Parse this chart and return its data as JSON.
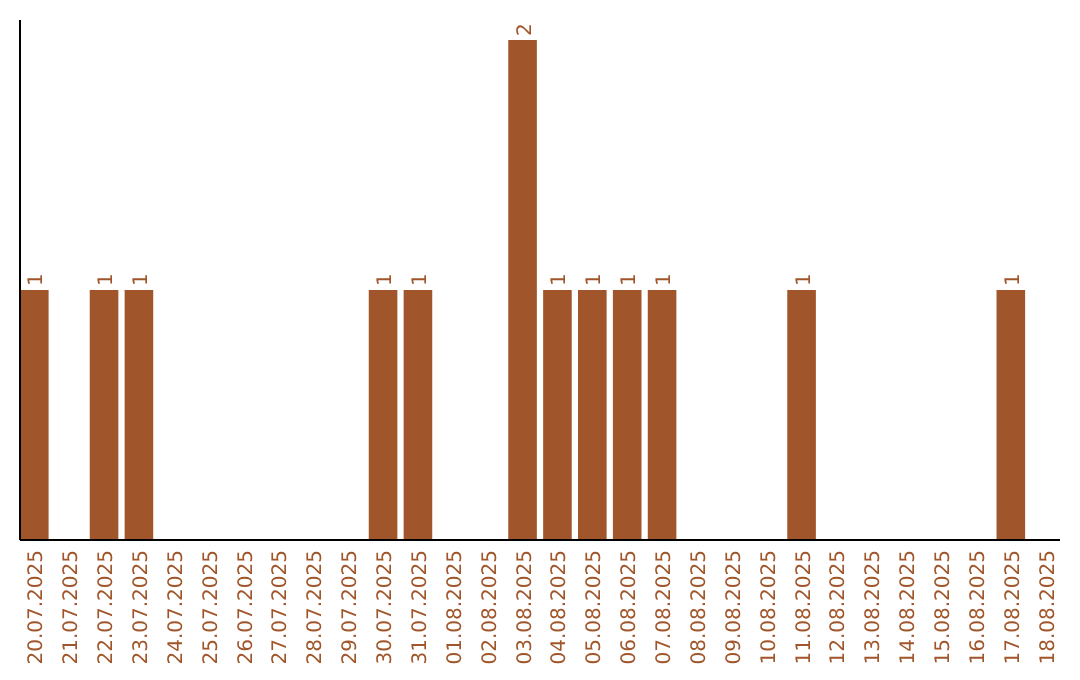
{
  "chart_data": {
    "type": "bar",
    "categories": [
      "20.07.2025",
      "21.07.2025",
      "22.07.2025",
      "23.07.2025",
      "24.07.2025",
      "25.07.2025",
      "26.07.2025",
      "27.07.2025",
      "28.07.2025",
      "29.07.2025",
      "30.07.2025",
      "31.07.2025",
      "01.08.2025",
      "02.08.2025",
      "03.08.2025",
      "04.08.2025",
      "05.08.2025",
      "06.08.2025",
      "07.08.2025",
      "08.08.2025",
      "09.08.2025",
      "10.08.2025",
      "11.08.2025",
      "12.08.2025",
      "13.08.2025",
      "14.08.2025",
      "15.08.2025",
      "16.08.2025",
      "17.08.2025",
      "18.08.2025"
    ],
    "values": [
      1,
      0,
      1,
      1,
      0,
      0,
      0,
      0,
      0,
      0,
      1,
      1,
      0,
      0,
      2,
      1,
      1,
      1,
      1,
      0,
      0,
      0,
      1,
      0,
      0,
      0,
      0,
      0,
      1,
      0
    ],
    "value_labels": [
      "1",
      null,
      "1",
      "1",
      null,
      null,
      null,
      null,
      null,
      null,
      "1",
      "1",
      null,
      null,
      "2",
      "1",
      "1",
      "1",
      "1",
      null,
      null,
      null,
      "1",
      null,
      null,
      null,
      null,
      null,
      "1",
      null
    ],
    "color": "#a0562a",
    "relative": false
  }
}
